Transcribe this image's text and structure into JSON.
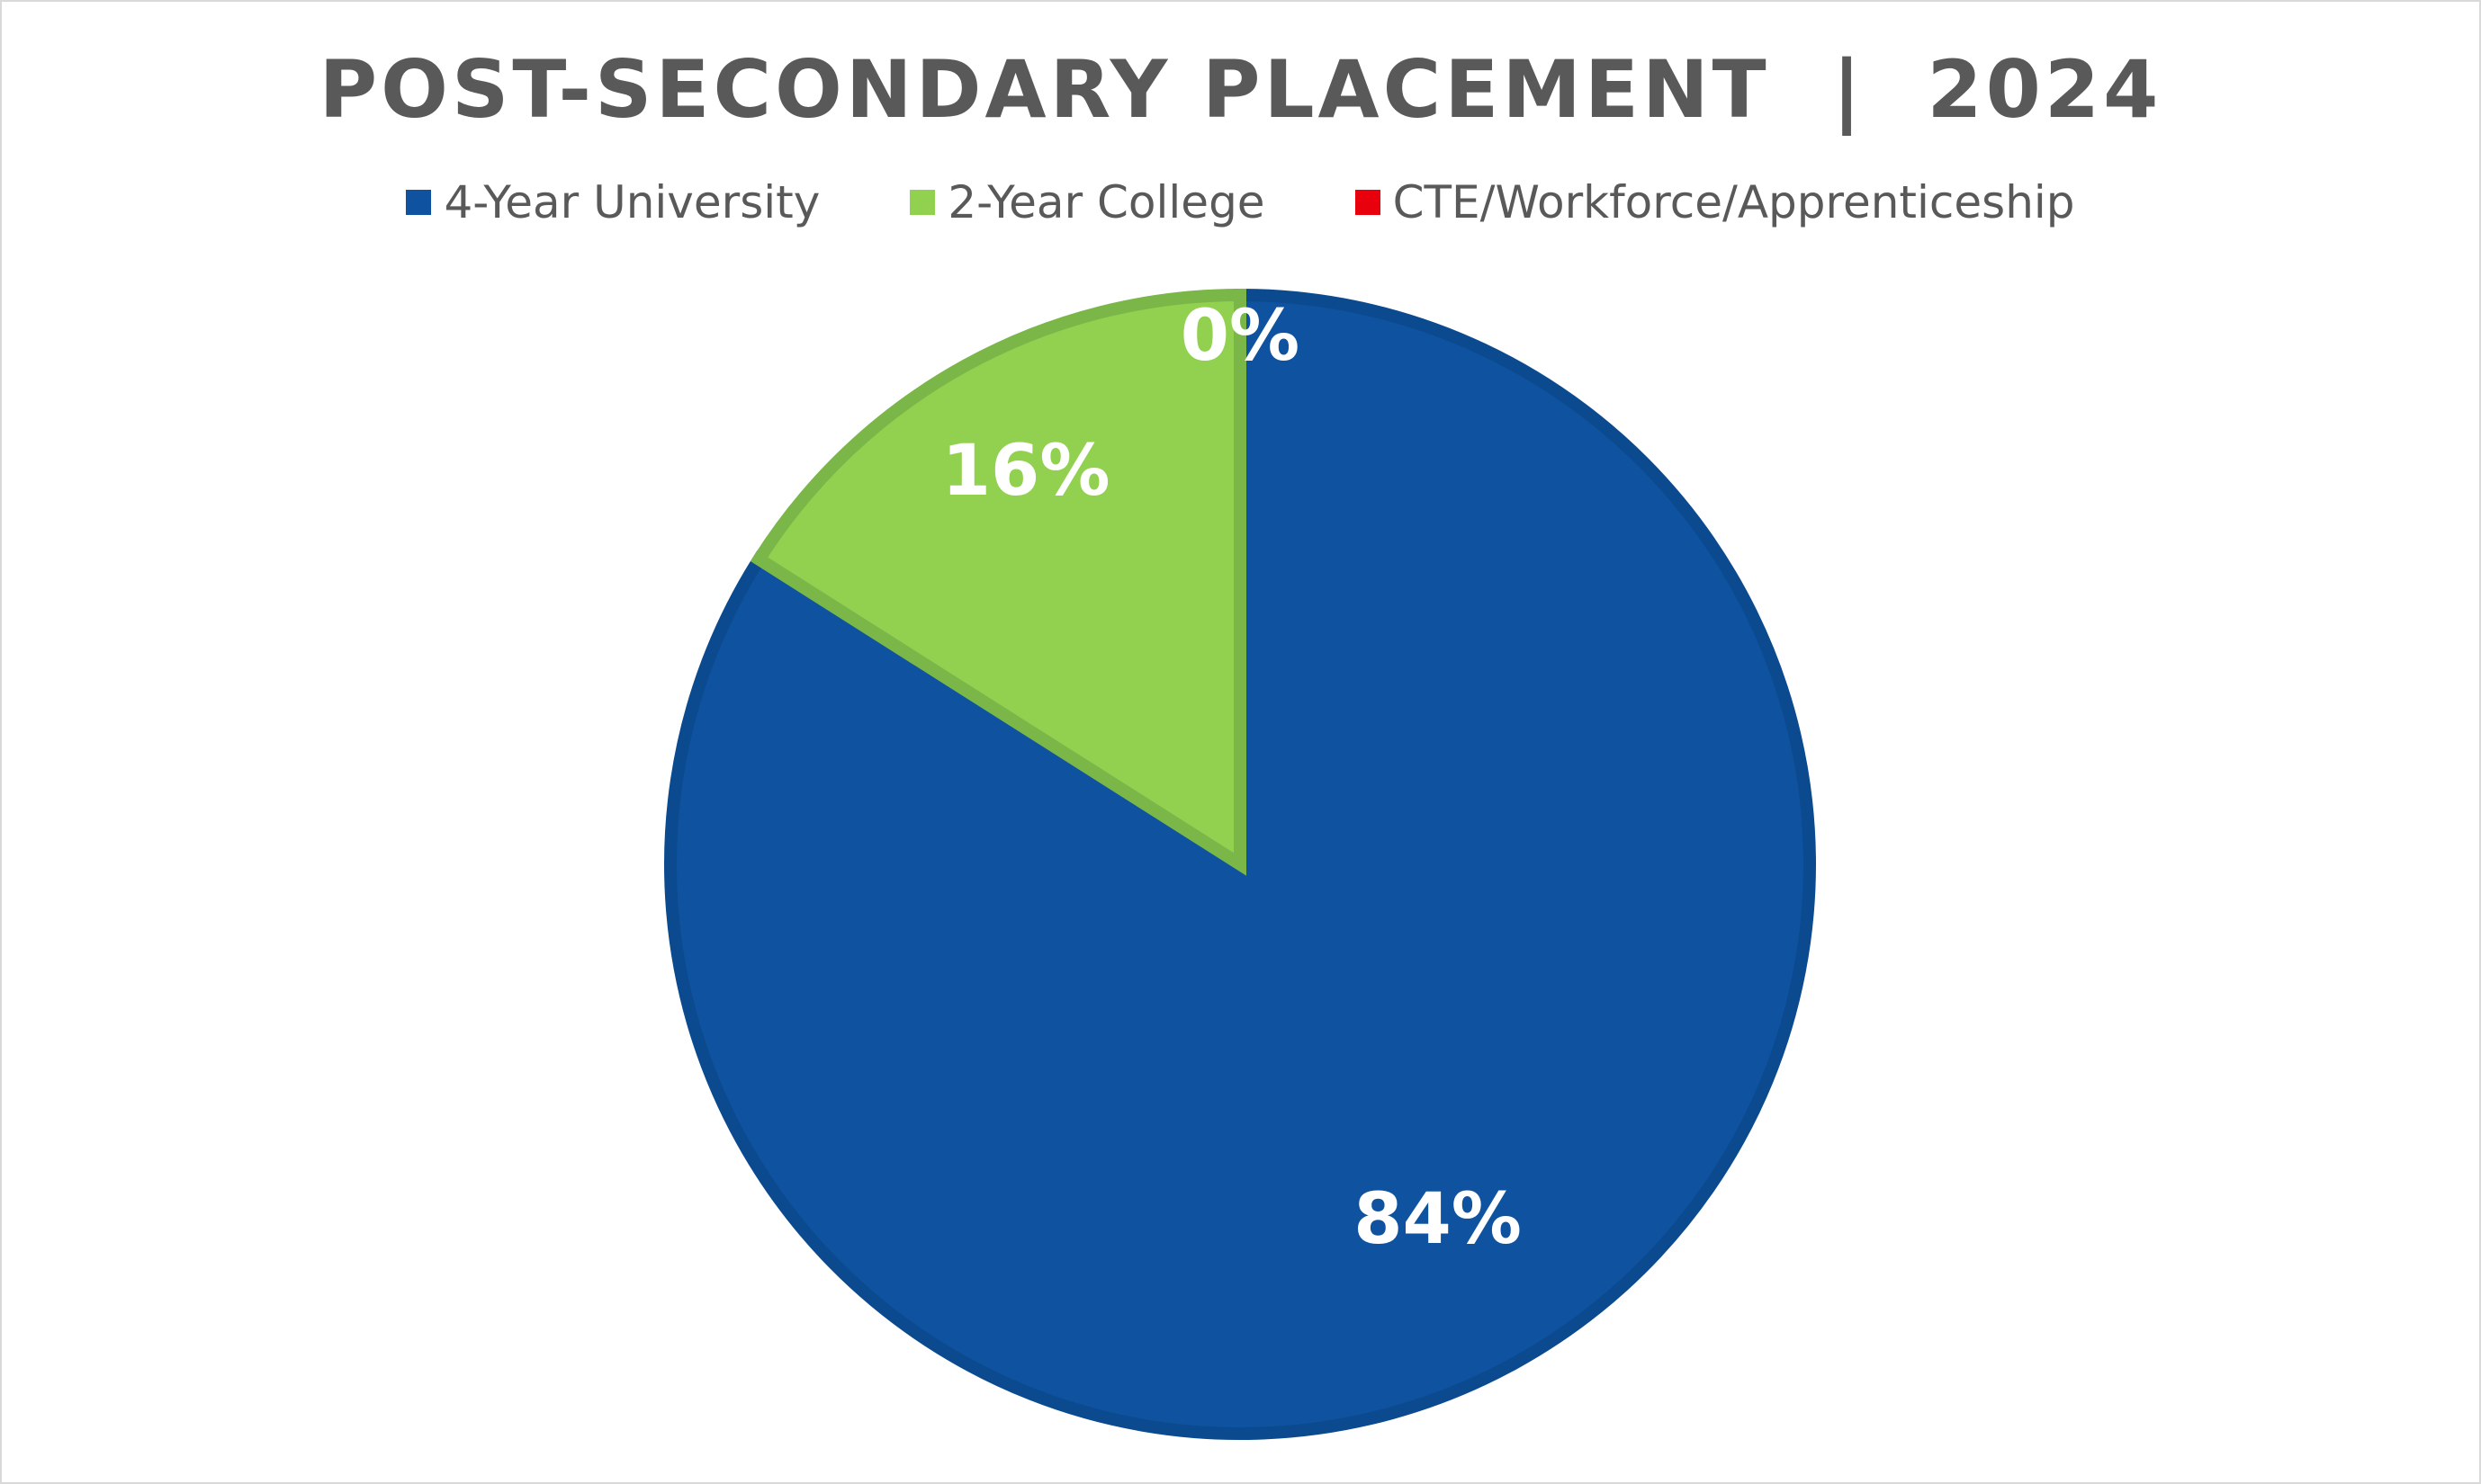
{
  "chart_data": {
    "type": "pie",
    "title": "POST-SECONDARY PLACEMENT  |  2024",
    "categories": [
      "4-Year University",
      "2-Year College",
      "CTE/Workforce/Apprenticeship"
    ],
    "values": [
      84,
      16,
      0
    ],
    "data_labels": [
      "84%",
      "16%",
      "0%"
    ],
    "colors": [
      "#0e52a0",
      "#92d050",
      "#e8000d"
    ],
    "border_colors": [
      "#0b4a8f",
      "#7ab648",
      "#c00000"
    ],
    "legend_position": "top",
    "start_angle": "12 o'clock",
    "direction": "clockwise"
  }
}
